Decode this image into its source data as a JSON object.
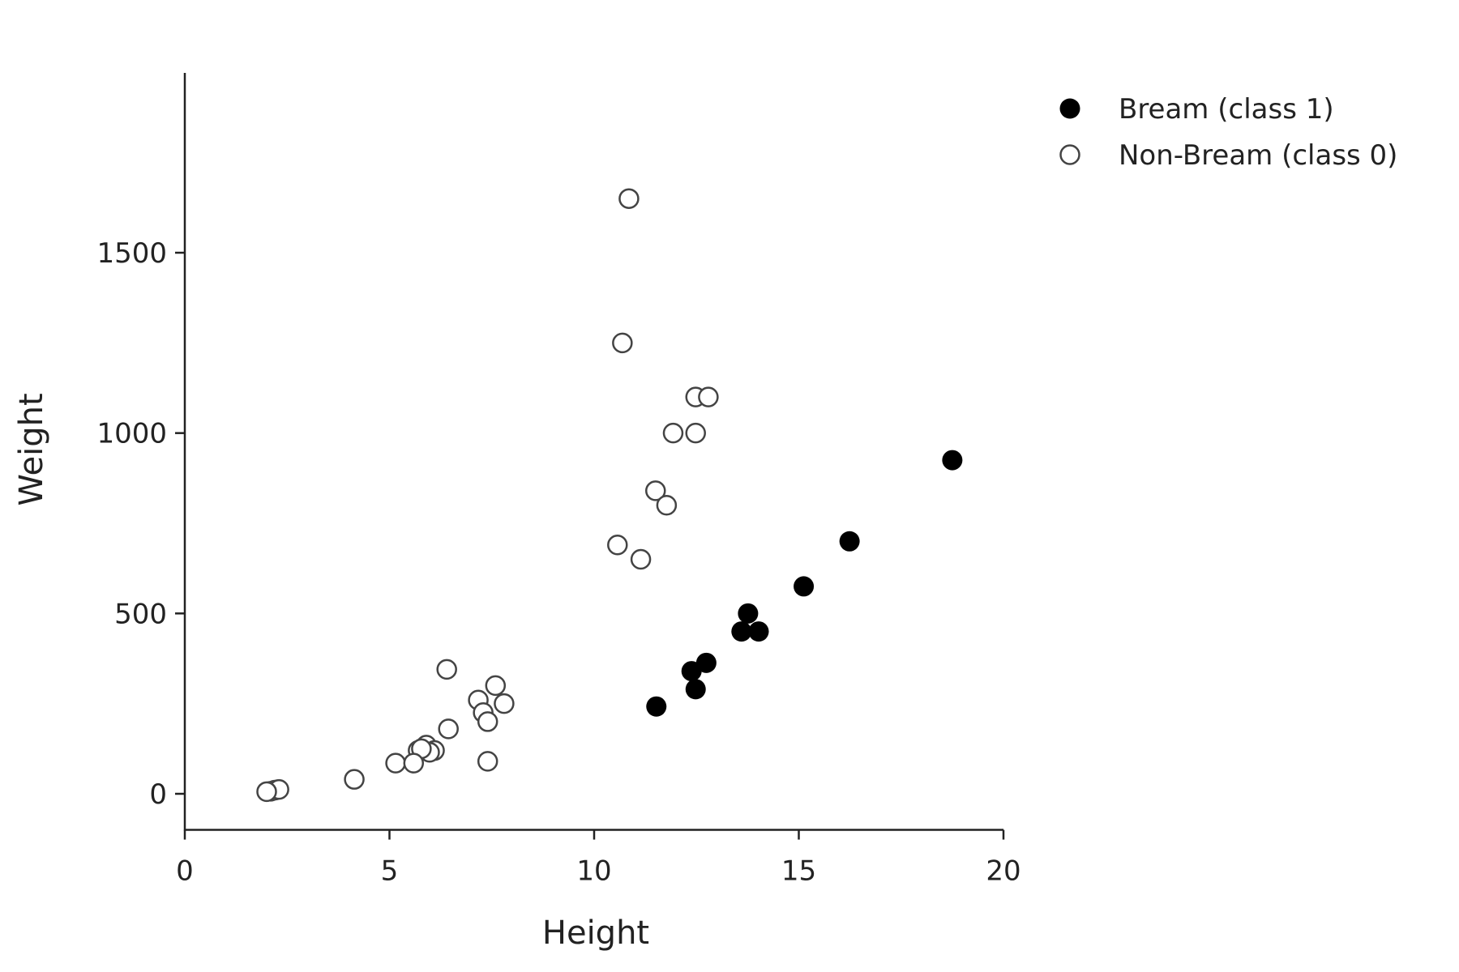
{
  "chart_data": {
    "type": "scatter",
    "xlabel": "Height",
    "ylabel": "Weight",
    "xlim": [
      0,
      20
    ],
    "ylim": [
      -100,
      2000
    ],
    "xticks": [
      0,
      5,
      10,
      15,
      20
    ],
    "yticks": [
      0,
      500,
      1000,
      1500
    ],
    "grid": false,
    "legend_position": "top-right",
    "series": [
      {
        "name": "Bream (class 1)",
        "marker": "filled-circle",
        "color": "#000000",
        "points": [
          [
            11.52,
            242
          ],
          [
            12.38,
            340
          ],
          [
            12.48,
            290
          ],
          [
            12.74,
            363
          ],
          [
            13.6,
            450
          ],
          [
            13.76,
            500
          ],
          [
            14.02,
            450
          ],
          [
            15.12,
            575
          ],
          [
            16.24,
            700
          ],
          [
            18.75,
            925
          ]
        ]
      },
      {
        "name": "Non-Bream (class 0)",
        "marker": "hollow-circle",
        "color": "#444444",
        "points": [
          [
            10.85,
            1650
          ],
          [
            10.69,
            1250
          ],
          [
            12.48,
            1100
          ],
          [
            12.79,
            1100
          ],
          [
            11.93,
            1000
          ],
          [
            12.48,
            1000
          ],
          [
            11.5,
            840
          ],
          [
            11.77,
            800
          ],
          [
            10.57,
            690
          ],
          [
            11.14,
            650
          ],
          [
            6.4,
            345
          ],
          [
            7.59,
            300
          ],
          [
            7.17,
            260
          ],
          [
            7.8,
            250
          ],
          [
            7.29,
            225
          ],
          [
            7.4,
            200
          ],
          [
            6.44,
            180
          ],
          [
            5.9,
            135
          ],
          [
            6.1,
            120
          ],
          [
            5.98,
            115
          ],
          [
            5.7,
            120
          ],
          [
            5.78,
            125
          ],
          [
            5.15,
            85
          ],
          [
            5.59,
            85
          ],
          [
            7.4,
            90
          ],
          [
            4.14,
            40
          ],
          [
            2.2,
            10
          ],
          [
            2.1,
            7
          ],
          [
            2.3,
            12
          ],
          [
            2.0,
            6
          ]
        ]
      }
    ]
  }
}
